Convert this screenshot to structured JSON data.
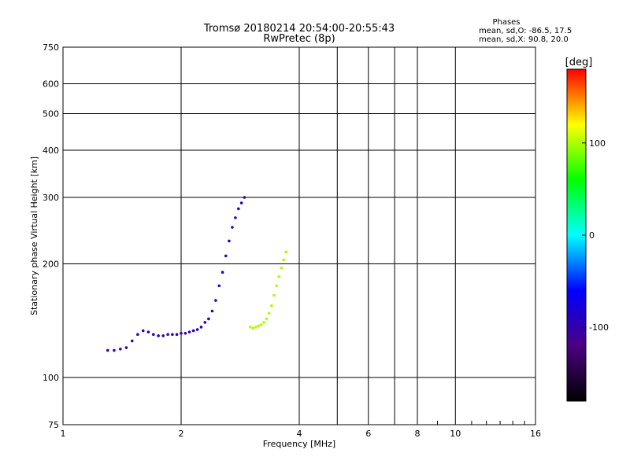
{
  "chart_data": {
    "type": "scatter",
    "title": "Tromsø 20180214 20:54:00-20:55:43",
    "subtitle": "RwPretec (8p)",
    "phase_info": {
      "heading": "Phases",
      "line1": "mean, sd,O: -86.5, 17.5",
      "line2": "mean, sd,X:  90.8, 20.0"
    },
    "xlabel": "Frequency [MHz]",
    "ylabel": "Stationary phase Virtual Height [km]",
    "xscale": "log2",
    "yscale": "log",
    "xlim": [
      1,
      16
    ],
    "ylim": [
      75,
      750
    ],
    "xticks": [
      1,
      2,
      4,
      6,
      8,
      10,
      16
    ],
    "xtick_labels": [
      "1",
      "2",
      "4",
      "6",
      "8",
      "10",
      "16"
    ],
    "yticks": [
      75,
      100,
      200,
      300,
      400,
      500,
      600,
      750
    ],
    "ytick_labels": [
      "75",
      "100",
      "200",
      "300",
      "400",
      "500",
      "600",
      "750"
    ],
    "grid": true,
    "colorbar": {
      "label": "[deg]",
      "range": [
        -180,
        180
      ],
      "ticks": [
        100,
        0,
        -100
      ],
      "tick_labels": [
        "100",
        "0",
        "-100"
      ],
      "colors": [
        "#000000",
        "#4b0082",
        "#0000ff",
        "#00ffff",
        "#00ff00",
        "#ffff00",
        "#ff0000"
      ]
    },
    "series": [
      {
        "mode": "O",
        "color_phase": -95,
        "x": [
          1.3,
          1.35,
          1.4,
          1.45,
          1.5,
          1.55,
          1.6,
          1.65,
          1.7,
          1.75,
          1.8,
          1.85,
          1.9,
          1.95,
          2.0,
          2.05,
          2.1,
          2.15,
          2.2,
          2.25,
          2.3,
          2.35,
          2.4,
          2.45,
          2.5,
          2.55,
          2.6,
          2.65,
          2.7,
          2.75,
          2.8,
          2.85,
          2.9
        ],
        "y": [
          118,
          118,
          119,
          120,
          125,
          130,
          133,
          132,
          130,
          129,
          129,
          130,
          130,
          130,
          131,
          131,
          132,
          133,
          134,
          136,
          140,
          143,
          150,
          160,
          175,
          190,
          210,
          230,
          250,
          265,
          280,
          290,
          300
        ]
      },
      {
        "mode": "X",
        "color_phase": 100,
        "x": [
          3.0,
          3.05,
          3.1,
          3.15,
          3.2,
          3.25,
          3.3,
          3.35,
          3.4,
          3.45,
          3.5,
          3.55,
          3.6,
          3.65,
          3.7
        ],
        "y": [
          136,
          135,
          136,
          137,
          138,
          140,
          143,
          148,
          155,
          165,
          175,
          185,
          195,
          205,
          215
        ]
      }
    ]
  }
}
